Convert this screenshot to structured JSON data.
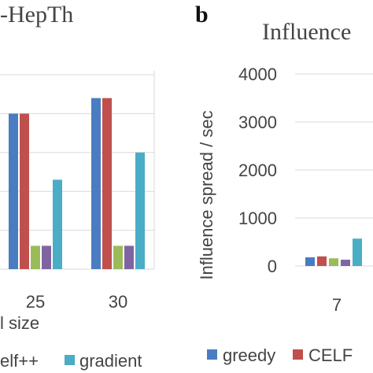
{
  "panel_b_label": "b",
  "colors": {
    "greedy": "#4a7cc1",
    "celf": "#c0504d",
    "celfpp": "#9bbb59",
    "purple": "#8064a2",
    "gradient": "#4bacc6",
    "grid": "#d9d9d9",
    "text": "#444444"
  },
  "chart_data": [
    {
      "type": "bar",
      "title": "-HepTh",
      "xlabel": "l size",
      "ylabel": "",
      "categories": [
        "",
        "25",
        "30"
      ],
      "series": [
        {
          "name": "",
          "values": [
            null,
            2000,
            2200
          ]
        },
        {
          "name": "",
          "values": [
            null,
            2000,
            2200
          ]
        },
        {
          "name": "elf++",
          "values": [
            null,
            300,
            300
          ]
        },
        {
          "name": "",
          "values": [
            null,
            300,
            300
          ]
        },
        {
          "name": "gradient",
          "values": [
            null,
            1150,
            1500
          ]
        }
      ],
      "legend_labels": [
        "elf++",
        "gradient"
      ],
      "grid": true,
      "legend_position": "bottom"
    },
    {
      "type": "bar",
      "title": "Influence",
      "xlabel": "",
      "ylabel": "Influence spread / sec",
      "yticks": [
        "0",
        "1000",
        "2000",
        "3000",
        "4000"
      ],
      "ylim": [
        0,
        4000
      ],
      "categories": [
        "7"
      ],
      "series": [
        {
          "name": "greedy",
          "values": [
            180
          ]
        },
        {
          "name": "CELF",
          "values": [
            200
          ]
        },
        {
          "name": "",
          "values": [
            160
          ]
        },
        {
          "name": "",
          "values": [
            130
          ]
        },
        {
          "name": "",
          "values": [
            570
          ]
        }
      ],
      "legend_labels": [
        "greedy",
        "CELF"
      ],
      "grid": true,
      "legend_position": "bottom"
    }
  ]
}
